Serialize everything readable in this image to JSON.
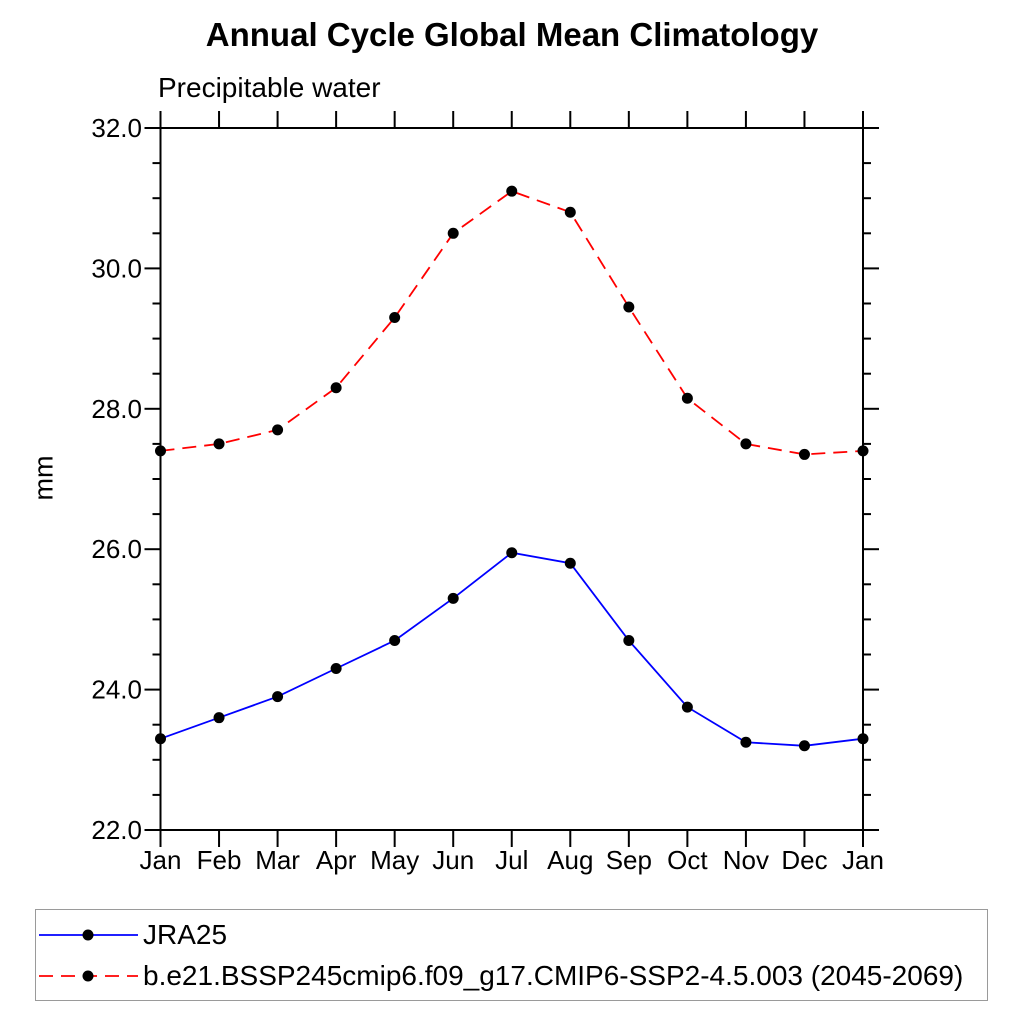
{
  "header": {
    "title": "Annual Cycle Global Mean Climatology",
    "subtitle": "Precipitable water"
  },
  "axes": {
    "ylabel": "mm",
    "x_tick_labels": [
      "Jan",
      "Feb",
      "Mar",
      "Apr",
      "May",
      "Jun",
      "Jul",
      "Aug",
      "Sep",
      "Oct",
      "Nov",
      "Dec",
      "Jan"
    ],
    "y_tick_labels": [
      "22.0",
      "24.0",
      "26.0",
      "28.0",
      "30.0",
      "32.0"
    ]
  },
  "legend": {
    "position": "bottom",
    "border_color": "#9a9a9a",
    "items": [
      {
        "label": "JRA25",
        "color": "#0000ff",
        "line_style": "solid",
        "marker": "filled-circle",
        "marker_color": "#000000"
      },
      {
        "label": "b.e21.BSSP245cmip6.f09_g17.CMIP6-SSP2-4.5.003 (2045-2069)",
        "color": "#ff0000",
        "line_style": "dashed",
        "marker": "filled-circle",
        "marker_color": "#000000"
      }
    ]
  },
  "chart_data": {
    "type": "line",
    "title": "Annual Cycle Global Mean Climatology",
    "subtitle": "Precipitable water",
    "xlabel": "",
    "ylabel": "mm",
    "categories": [
      "Jan",
      "Feb",
      "Mar",
      "Apr",
      "May",
      "Jun",
      "Jul",
      "Aug",
      "Sep",
      "Oct",
      "Nov",
      "Dec",
      "Jan"
    ],
    "ylim": [
      22.0,
      32.0
    ],
    "ytick_major_interval": 2.0,
    "ytick_minor_interval": 0.5,
    "grid": false,
    "legend_position": "bottom",
    "marker": "filled-circle",
    "marker_color": "#000000",
    "series": [
      {
        "name": "JRA25",
        "color": "#0000ff",
        "line_style": "solid",
        "values": [
          23.3,
          23.6,
          23.9,
          24.3,
          24.7,
          25.3,
          25.95,
          25.8,
          24.7,
          23.75,
          23.25,
          23.2,
          23.3
        ]
      },
      {
        "name": "b.e21.BSSP245cmip6.f09_g17.CMIP6-SSP2-4.5.003 (2045-2069)",
        "color": "#ff0000",
        "line_style": "dashed",
        "values": [
          27.4,
          27.5,
          27.7,
          28.3,
          29.3,
          30.5,
          31.1,
          30.8,
          29.45,
          28.15,
          27.5,
          27.35,
          27.4
        ]
      }
    ]
  }
}
